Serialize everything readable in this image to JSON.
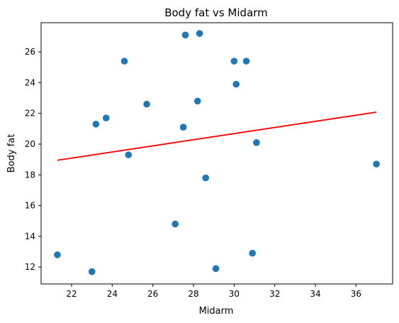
{
  "chart_data": {
    "type": "scatter",
    "title": "Body fat vs Midarm",
    "xlabel": "Midarm",
    "ylabel": "Body fat",
    "xlim": [
      20.5,
      37.8
    ],
    "ylim": [
      10.9,
      27.9
    ],
    "xticks": [
      22,
      24,
      26,
      28,
      30,
      32,
      34,
      36
    ],
    "yticks": [
      12,
      14,
      16,
      18,
      20,
      22,
      24,
      26
    ],
    "grid": false,
    "colors": {
      "points": "#1f77b4",
      "fit_line": "#ff0000"
    },
    "series": [
      {
        "x": [
          21.3,
          23.0,
          23.2,
          23.7,
          24.6,
          24.8,
          25.7,
          27.1,
          27.5,
          27.6,
          28.2,
          28.3,
          28.6,
          29.1,
          30.0,
          30.1,
          30.6,
          30.9,
          31.1,
          37.0
        ],
        "y": [
          12.8,
          11.7,
          21.3,
          21.7,
          25.4,
          19.3,
          22.6,
          14.8,
          21.1,
          27.1,
          22.8,
          27.2,
          17.8,
          11.9,
          25.4,
          23.9,
          25.4,
          12.9,
          20.1,
          18.7
        ]
      }
    ],
    "fit_line": {
      "x": [
        21.3,
        37.0
      ],
      "y": [
        18.95,
        22.08
      ]
    }
  }
}
